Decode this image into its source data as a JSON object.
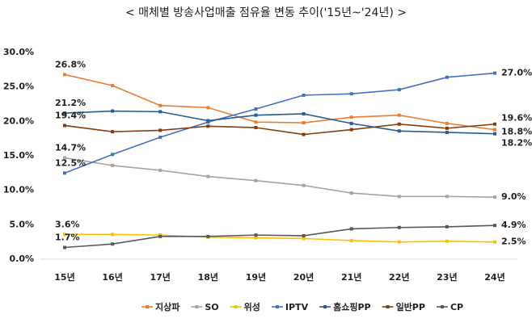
{
  "chart_data": {
    "type": "line",
    "title": "<  매체별 방송사업매출 점유율 변동 추이('15년~'24년)  >",
    "categories": [
      "15년",
      "16년",
      "17년",
      "18년",
      "19년",
      "20년",
      "21년",
      "22년",
      "23년",
      "24년"
    ],
    "ylim": [
      0,
      30
    ],
    "yticks": [
      {
        "value": 0,
        "label": "0.0%"
      },
      {
        "value": 5,
        "label": "5.0%"
      },
      {
        "value": 10,
        "label": "10.0%"
      },
      {
        "value": 15,
        "label": "15.0%"
      },
      {
        "value": 20,
        "label": "20.0%"
      },
      {
        "value": 25,
        "label": "25.0%"
      },
      {
        "value": 30,
        "label": "30.0%"
      }
    ],
    "grid": true,
    "legend": "bottom",
    "series": [
      {
        "name": "지상파",
        "color": "#ed7d31",
        "values": [
          26.8,
          25.2,
          22.3,
          22.0,
          19.9,
          19.8,
          20.6,
          20.9,
          19.7,
          18.8
        ],
        "value_labels": [
          "26.8%",
          null,
          null,
          null,
          null,
          null,
          null,
          null,
          null,
          "18.8%"
        ]
      },
      {
        "name": "SO",
        "color": "#a5a5a5",
        "values": [
          14.7,
          13.6,
          12.9,
          12.0,
          11.4,
          10.7,
          9.6,
          9.1,
          9.1,
          9.0
        ],
        "value_labels": [
          "14.7%",
          null,
          null,
          null,
          null,
          null,
          null,
          null,
          null,
          "9.0%"
        ]
      },
      {
        "name": "위성",
        "color": "#ffc000",
        "values": [
          3.6,
          3.6,
          3.5,
          3.2,
          3.1,
          3.0,
          2.7,
          2.5,
          2.6,
          2.5
        ],
        "value_labels": [
          "3.6%",
          null,
          null,
          null,
          null,
          null,
          null,
          null,
          null,
          "2.5%"
        ]
      },
      {
        "name": "IPTV",
        "color": "#4472c4",
        "values": [
          12.5,
          15.2,
          17.7,
          19.9,
          21.8,
          23.8,
          24.0,
          24.6,
          26.4,
          27.0
        ],
        "value_labels": [
          "12.5%",
          null,
          null,
          null,
          null,
          null,
          null,
          null,
          null,
          "27.0%"
        ]
      },
      {
        "name": "홈쇼핑PP",
        "color": "#255e91",
        "values": [
          21.2,
          21.5,
          21.4,
          20.1,
          20.9,
          21.1,
          19.7,
          18.6,
          18.4,
          18.2
        ],
        "value_labels": [
          "21.2%",
          null,
          null,
          null,
          null,
          null,
          null,
          null,
          null,
          "18.2%"
        ]
      },
      {
        "name": "일반PP",
        "color": "#843c0c",
        "values": [
          19.4,
          18.5,
          18.7,
          19.3,
          19.1,
          18.1,
          18.8,
          19.6,
          19.0,
          19.6
        ],
        "value_labels": [
          "19.4%",
          null,
          null,
          null,
          null,
          null,
          null,
          null,
          null,
          "19.6%"
        ]
      },
      {
        "name": "CP",
        "color": "#595959",
        "values": [
          1.7,
          2.2,
          3.3,
          3.3,
          3.5,
          3.4,
          4.4,
          4.6,
          4.7,
          4.9
        ],
        "value_labels": [
          "1.7%",
          null,
          null,
          null,
          null,
          null,
          null,
          null,
          null,
          "4.9%"
        ]
      }
    ]
  }
}
